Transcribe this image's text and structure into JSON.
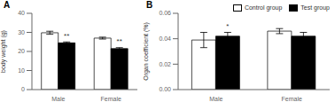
{
  "chart_data": [
    {
      "type": "bar",
      "title": "A",
      "y_label": "body weight (g)",
      "categories": [
        "Male",
        "Female"
      ],
      "series": [
        {
          "name": "Control group",
          "color": "white",
          "values": [
            29.8,
            27.0
          ],
          "errors": [
            0.8,
            0.5
          ]
        },
        {
          "name": "Test group",
          "color": "black",
          "values": [
            24.5,
            21.5
          ],
          "errors": [
            0.5,
            0.5
          ],
          "annotations": [
            "**",
            "**"
          ]
        }
      ],
      "ylim": [
        0,
        40
      ],
      "yticks": [
        0,
        10,
        20,
        30,
        40
      ]
    },
    {
      "type": "bar",
      "title": "B",
      "y_label": "Organ coefficient (%)",
      "categories": [
        "Male",
        "Female"
      ],
      "series": [
        {
          "name": "Control group",
          "color": "white",
          "values": [
            0.039,
            0.046
          ],
          "errors": [
            0.006,
            0.002
          ]
        },
        {
          "name": "Test group",
          "color": "black",
          "values": [
            0.042,
            0.042
          ],
          "errors": [
            0.003,
            0.003
          ],
          "annotations": [
            "*",
            null
          ]
        }
      ],
      "ylim": [
        0.0,
        0.06
      ],
      "yticks": [
        {
          "value": 0,
          "label": "0.00"
        },
        0.02,
        0.04,
        0.06
      ],
      "legend": "upper right"
    }
  ]
}
